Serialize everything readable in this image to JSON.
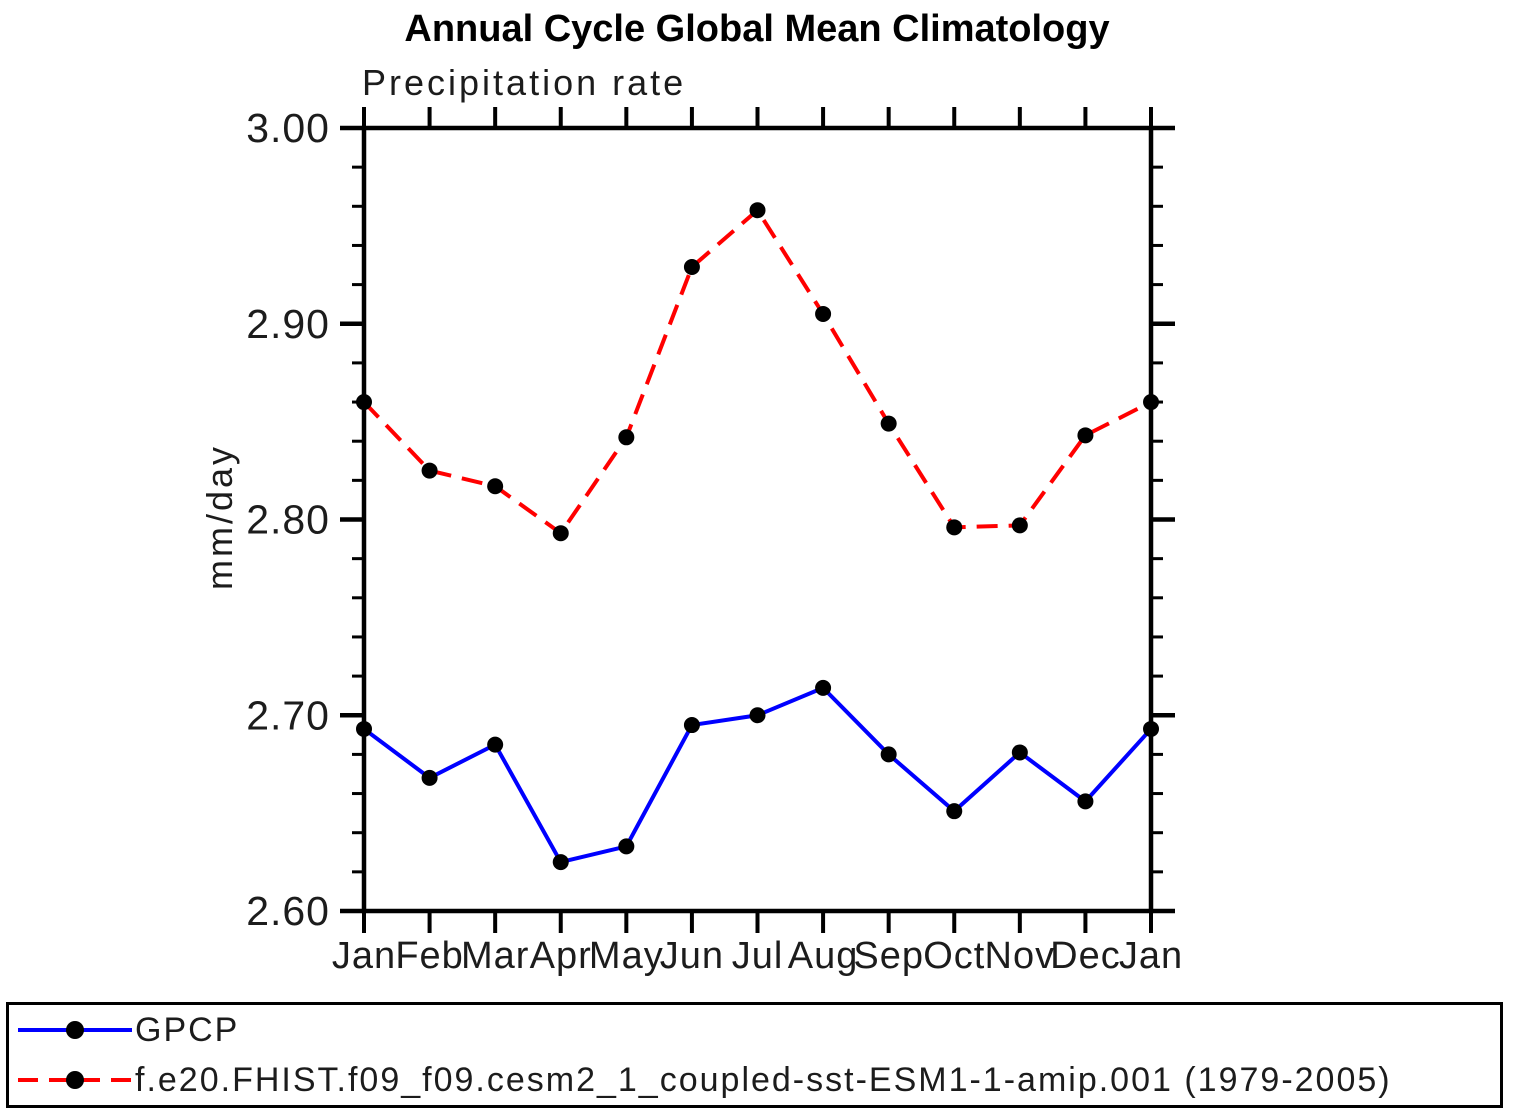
{
  "title": "Annual Cycle Global Mean Climatology",
  "chart_data": {
    "type": "line",
    "subtitle": "Precipitation rate",
    "ylabel": "mm/day",
    "categories": [
      "Jan",
      "Feb",
      "Mar",
      "Apr",
      "May",
      "Jun",
      "Jul",
      "Aug",
      "Sep",
      "Oct",
      "Nov",
      "Dec",
      "Jan"
    ],
    "ylim": [
      2.6,
      3.0
    ],
    "yticks": [
      "3.00",
      "2.90",
      "2.80",
      "2.70",
      "2.60"
    ],
    "ytick_minor_step": 0.02,
    "grid": false,
    "legend_position": "bottom-outside",
    "frame_color": "#000000",
    "marker": "filled-circle",
    "marker_color": "#000000",
    "series": [
      {
        "name": "GPCP",
        "color": "#0000ff",
        "line_style": "solid",
        "values": [
          2.693,
          2.668,
          2.685,
          2.625,
          2.633,
          2.695,
          2.7,
          2.714,
          2.68,
          2.651,
          2.681,
          2.656,
          2.693
        ]
      },
      {
        "name": "f.e20.FHIST.f09_f09.cesm2_1_coupled-sst-ESM1-1-amip.001 (1979-2005)",
        "color": "#ff0000",
        "line_style": "dashed",
        "values": [
          2.86,
          2.825,
          2.817,
          2.793,
          2.842,
          2.929,
          2.958,
          2.905,
          2.849,
          2.796,
          2.797,
          2.843,
          2.86
        ]
      }
    ]
  }
}
